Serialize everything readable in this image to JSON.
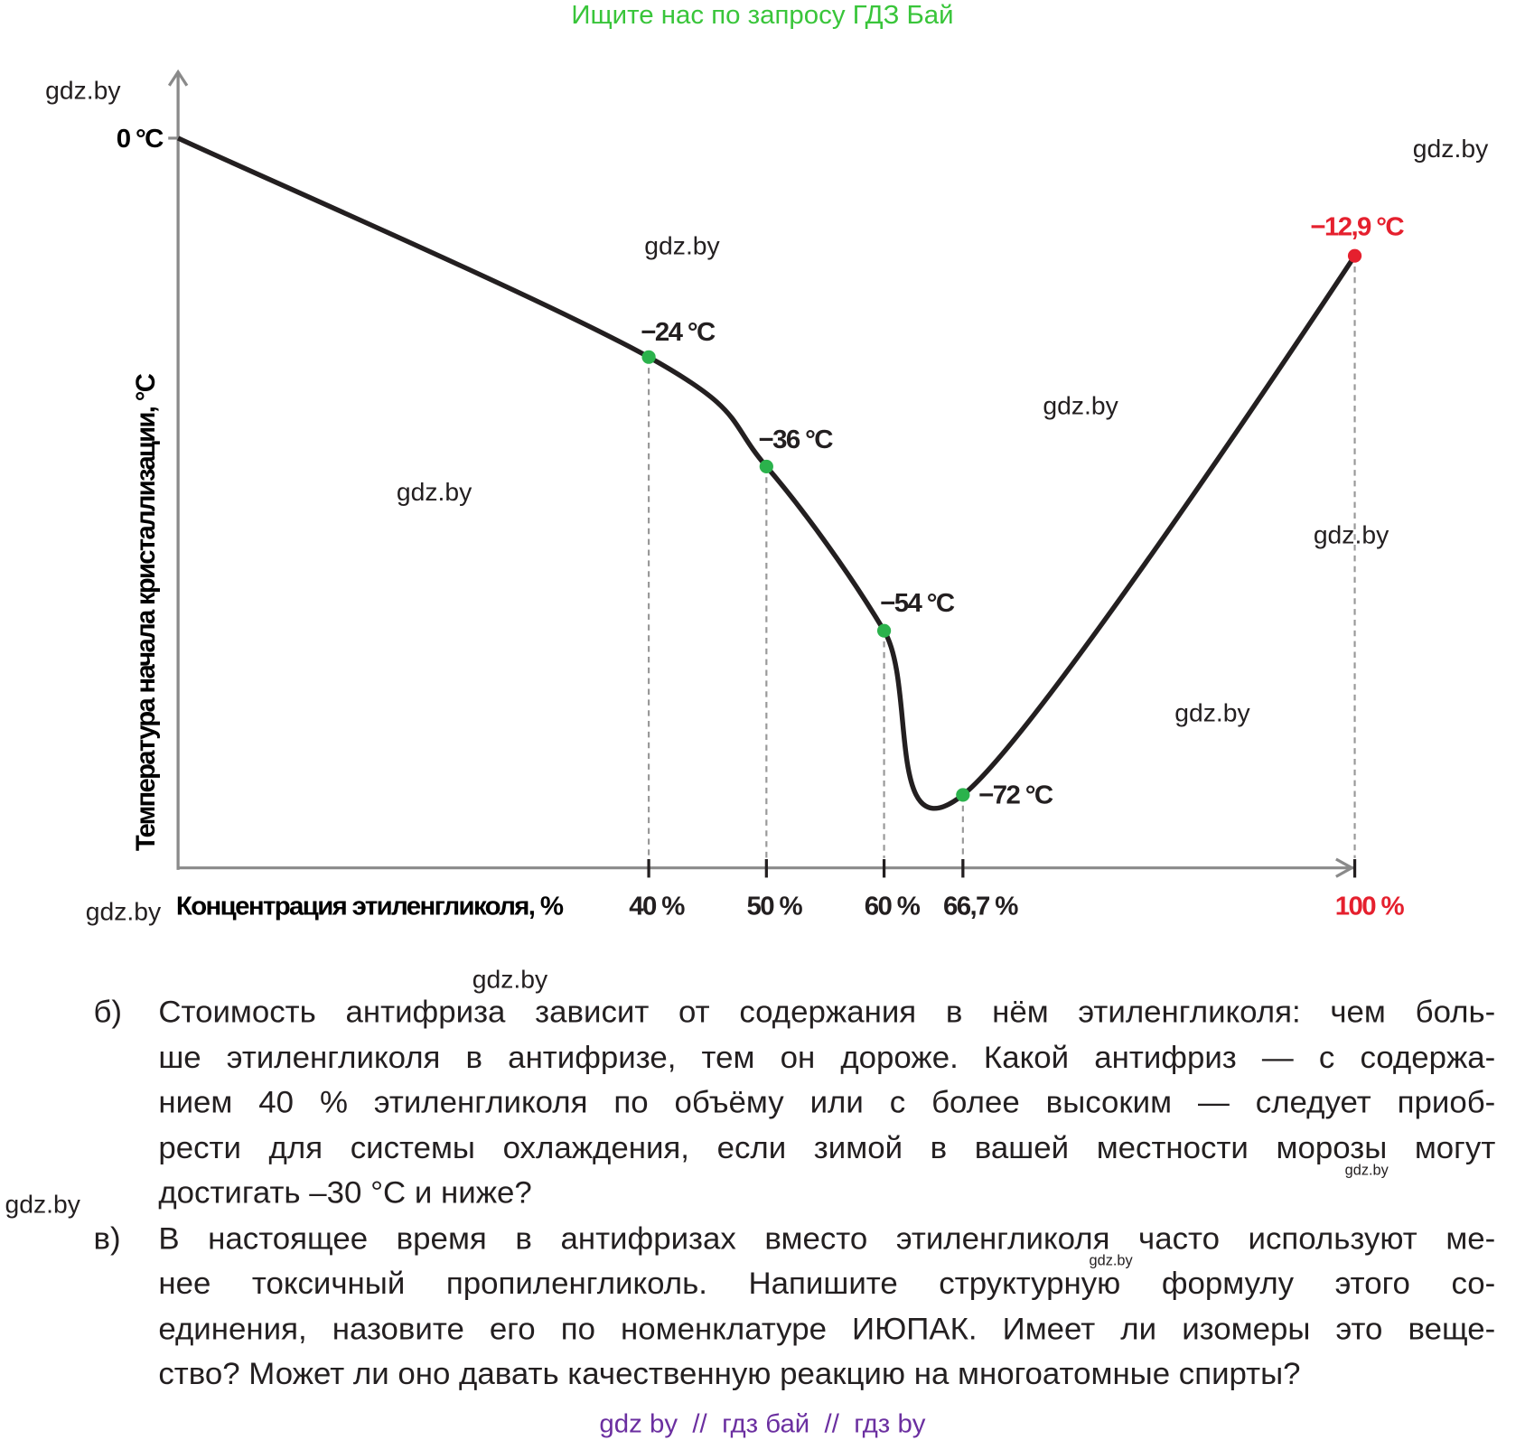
{
  "header": {
    "text": "Ищите нас по запросу ГДЗ Бай"
  },
  "chart_data": {
    "type": "line",
    "x_label": "Концентрация этиленгликоля, %",
    "y_label": "Температура начала кристаллизации, °С",
    "x": [
      0,
      40,
      50,
      60,
      66.7,
      100
    ],
    "values": [
      0,
      -24,
      -36,
      -54,
      -72,
      -12.9
    ],
    "value_labels": [
      null,
      "−24 °C",
      "−36 °C",
      "−54 °C",
      "−72 °C",
      "−12,9 °C"
    ],
    "value_label_colors": [
      null,
      "#231f20",
      "#231f20",
      "#231f20",
      "#231f20",
      "#e5202e"
    ],
    "color": "#231f20",
    "point_colors": [
      null,
      "#2bb24c",
      "#2bb24c",
      "#2bb24c",
      "#2bb24c",
      "#e5202e"
    ],
    "xlim": [
      0,
      100
    ],
    "ylim": [
      -80,
      0
    ],
    "xticks": [
      {
        "value": 40,
        "label": "40 %"
      },
      {
        "value": 50,
        "label": "50 %"
      },
      {
        "value": 60,
        "label": "60 %"
      },
      {
        "value": 66.7,
        "label": "66,7 %"
      },
      {
        "value": 100,
        "label": "100 %"
      }
    ],
    "xtick_colors": [
      "#231f20",
      "#231f20",
      "#231f20",
      "#231f20",
      "#e5202e"
    ],
    "yticks": [
      {
        "value": 0,
        "label": "0 °C"
      }
    ]
  },
  "questions": [
    {
      "label": "б)",
      "lines": [
        "Стоимость антифриза зависит от содержания в нём этиленгликоля: чем боль-",
        "ше этиленгликоля в антифризе, тем он дороже. Какой антифриз — с содержа-",
        "нием 40 % этиленгликоля по объёму или с более высоким — следует приоб-",
        "рести для системы охлаждения, если зимой в вашей местности морозы могут",
        "достигать –30 °С и ниже?"
      ]
    },
    {
      "label": "в)",
      "lines": [
        "В настоящее время в антифризах вместо этиленгликоля часто используют ме-",
        "нее токсичный пропиленгликоль. Напишите структурную формулу этого со-",
        "единения, назовите его по номенклатуре ИЮПАК. Имеет ли изомеры это веще-",
        "ство? Может ли оно давать качественную реакцию на многоатомные спирты?"
      ]
    }
  ],
  "watermarks": [
    "gdz.by",
    "gdz.by",
    "gdz.by",
    "gdz.by",
    "gdz.by",
    "gdz.by",
    "gdz.by",
    "gdz.by",
    "gdz.by",
    "gdz.by",
    "gdz.by",
    "gdz.by"
  ],
  "footer": "gdz by  //  гдз бай  //  гдз by"
}
